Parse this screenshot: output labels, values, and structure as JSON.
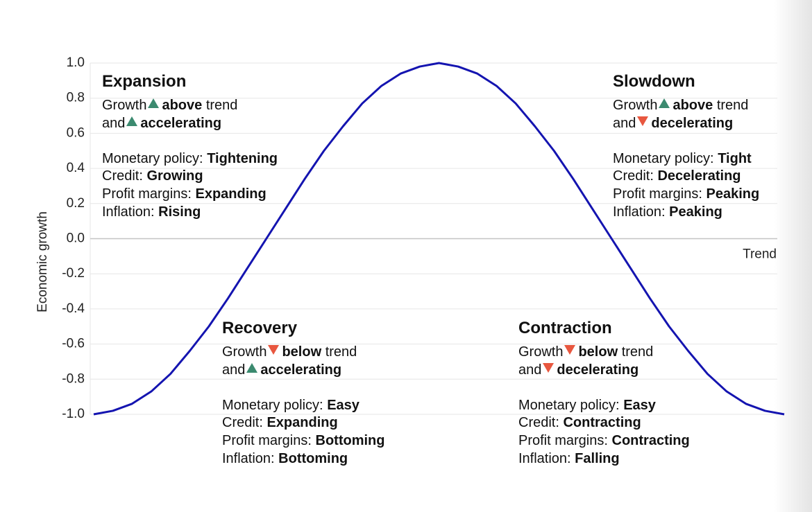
{
  "chart_data": {
    "type": "line",
    "ylabel": "Economic growth",
    "categories": [
      null,
      null,
      null,
      null,
      null,
      null,
      null,
      null,
      null,
      null,
      null,
      null,
      null,
      null,
      null,
      null,
      null,
      null,
      null,
      null,
      null,
      null,
      null,
      null,
      null,
      null,
      null,
      null,
      null,
      null,
      null,
      null,
      null,
      null,
      null,
      null,
      null
    ],
    "series": [
      {
        "color": "#1414b0",
        "values": [
          -1,
          -0.98,
          -0.94,
          -0.87,
          -0.77,
          -0.64,
          -0.5,
          -0.34,
          -0.17,
          0,
          0.17,
          0.34,
          0.5,
          0.64,
          0.77,
          0.87,
          0.94,
          0.98,
          1,
          0.98,
          0.94,
          0.87,
          0.77,
          0.64,
          0.5,
          0.34,
          0.17,
          0,
          -0.17,
          -0.34,
          -0.5,
          -0.64,
          -0.77,
          -0.87,
          -0.94,
          -0.98,
          -1
        ]
      }
    ],
    "ylim": [
      -1,
      1
    ],
    "yticks": [
      {
        "value": -1,
        "label": "-1.0"
      },
      {
        "value": -0.8,
        "label": "-0.8"
      },
      {
        "value": -0.6,
        "label": "-0.6"
      },
      {
        "value": -0.4,
        "label": "-0.4"
      },
      {
        "value": -0.2,
        "label": "-0.2"
      },
      {
        "value": 0,
        "label": "0.0"
      },
      {
        "value": 0.2,
        "label": "0.2"
      },
      {
        "value": 0.4,
        "label": "0.4"
      },
      {
        "value": 0.6,
        "label": "0.6"
      },
      {
        "value": 0.8,
        "label": "0.8"
      },
      {
        "value": 1,
        "label": "1.0"
      }
    ],
    "grid": true,
    "reference_line": {
      "value": 0,
      "label": "Trend"
    },
    "arrow_colors": {
      "up": "#3b8a6f",
      "down": "#e8573f"
    },
    "quadrants": [
      {
        "title": "Expansion",
        "growth": [
          [
            {
              "text": "Growth"
            },
            {
              "arrow": "up"
            },
            {
              "text": "above",
              "bold": true
            },
            {
              "text": "trend"
            }
          ],
          [
            {
              "text": "and"
            },
            {
              "arrow": "up"
            },
            {
              "text": "accelerating",
              "bold": true
            }
          ]
        ],
        "items": [
          {
            "label": "Monetary policy:",
            "value": "Tightening"
          },
          {
            "label": "Credit:",
            "value": "Growing"
          },
          {
            "label": "Profit margins:",
            "value": "Expanding"
          },
          {
            "label": "Inflation:",
            "value": "Rising"
          }
        ]
      },
      {
        "title": "Slowdown",
        "growth": [
          [
            {
              "text": "Growth"
            },
            {
              "arrow": "up"
            },
            {
              "text": "above",
              "bold": true
            },
            {
              "text": "trend"
            }
          ],
          [
            {
              "text": "and"
            },
            {
              "arrow": "down"
            },
            {
              "text": "decelerating",
              "bold": true
            }
          ]
        ],
        "items": [
          {
            "label": "Monetary policy:",
            "value": "Tight"
          },
          {
            "label": "Credit:",
            "value": "Decelerating"
          },
          {
            "label": "Profit margins:",
            "value": "Peaking"
          },
          {
            "label": "Inflation:",
            "value": "Peaking"
          }
        ]
      },
      {
        "title": "Recovery",
        "growth": [
          [
            {
              "text": "Growth"
            },
            {
              "arrow": "down"
            },
            {
              "text": "below",
              "bold": true
            },
            {
              "text": "trend"
            }
          ],
          [
            {
              "text": "and"
            },
            {
              "arrow": "up"
            },
            {
              "text": "accelerating",
              "bold": true
            }
          ]
        ],
        "items": [
          {
            "label": "Monetary policy:",
            "value": "Easy"
          },
          {
            "label": "Credit:",
            "value": "Expanding"
          },
          {
            "label": "Profit margins:",
            "value": "Bottoming"
          },
          {
            "label": "Inflation:",
            "value": "Bottoming"
          }
        ]
      },
      {
        "title": "Contraction",
        "growth": [
          [
            {
              "text": "Growth"
            },
            {
              "arrow": "down"
            },
            {
              "text": "below",
              "bold": true
            },
            {
              "text": "trend"
            }
          ],
          [
            {
              "text": "and"
            },
            {
              "arrow": "down"
            },
            {
              "text": "decelerating",
              "bold": true
            }
          ]
        ],
        "items": [
          {
            "label": "Monetary policy:",
            "value": "Easy"
          },
          {
            "label": "Credit:",
            "value": "Contracting"
          },
          {
            "label": "Profit margins:",
            "value": "Contracting"
          },
          {
            "label": "Inflation:",
            "value": "Falling"
          }
        ]
      }
    ]
  }
}
